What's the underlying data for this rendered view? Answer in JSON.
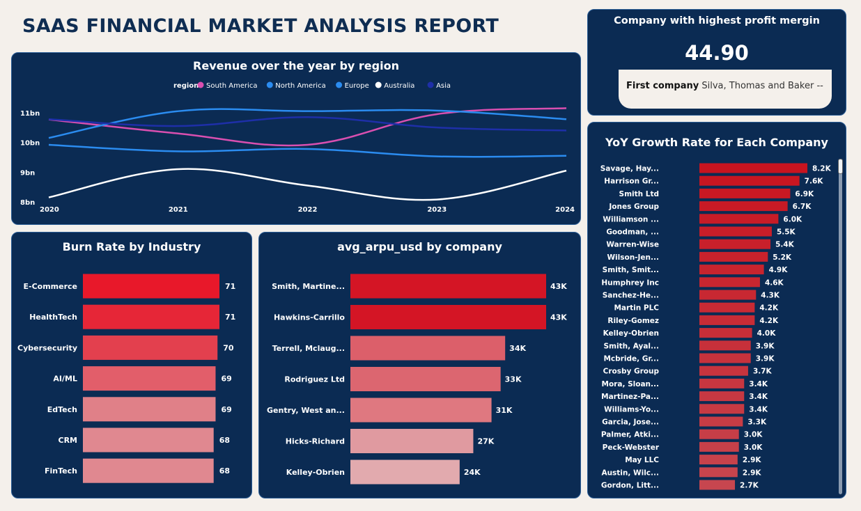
{
  "page_title": "SAAS FINANCIAL MARKET ANALYSIS REPORT",
  "kpi": {
    "title": "Company with highest profit mergin",
    "value": "44.90",
    "first_label": "First company",
    "first_value": "Silva, Thomas and Baker --"
  },
  "colors": {
    "background": "#f4f0eb",
    "card": "#0b2b53",
    "south_america": "#d94fb0",
    "north_america": "#2b8cf0",
    "europe": "#2b8cf0",
    "australia": "#ffffff",
    "asia": "#1e2fa8"
  },
  "chart_data": [
    {
      "type": "line",
      "title": "Revenue over the year by region",
      "legend_title": "region",
      "legend_position": "top",
      "x": [
        "2020",
        "2021",
        "2022",
        "2023",
        "2024"
      ],
      "y_ticks": [
        "8bn",
        "9bn",
        "10bn",
        "11bn"
      ],
      "ylim": [
        8,
        11.3
      ],
      "series": [
        {
          "name": "South America",
          "color": "#d94fb0",
          "values": [
            10.77,
            10.3,
            9.92,
            10.95,
            11.15
          ]
        },
        {
          "name": "North America",
          "color": "#2b8cf0",
          "values": [
            10.15,
            11.05,
            11.05,
            11.07,
            10.78
          ]
        },
        {
          "name": "Europe",
          "color": "#2b8cf0",
          "values": [
            9.92,
            9.7,
            9.78,
            9.53,
            9.55
          ]
        },
        {
          "name": "Australia",
          "color": "#ffffff",
          "values": [
            8.15,
            9.1,
            8.55,
            8.08,
            9.05
          ]
        },
        {
          "name": "Asia",
          "color": "#1e2fa8",
          "values": [
            10.78,
            10.55,
            10.85,
            10.5,
            10.4
          ]
        }
      ]
    },
    {
      "type": "bar",
      "orientation": "horizontal",
      "title": "Burn Rate by Industry",
      "categories": [
        "E-Commerce",
        "HealthTech",
        "Cybersecurity",
        "AI/ML",
        "EdTech",
        "CRM",
        "FinTech"
      ],
      "values": [
        71,
        71,
        70,
        69,
        69,
        68,
        68
      ],
      "labels": [
        "71",
        "71",
        "70",
        "69",
        "69",
        "68",
        "68"
      ],
      "colors": [
        "#e8182a",
        "#e62637",
        "#e3404e",
        "#e25e6a",
        "#e08088",
        "#e08890",
        "#e08890"
      ]
    },
    {
      "type": "bar",
      "orientation": "horizontal",
      "title": "avg_arpu_usd by company",
      "categories": [
        "Smith, Martine...",
        "Hawkins-Carrillo",
        "Terrell, Mclaug...",
        "Rodriguez Ltd",
        "Gentry, West an...",
        "Hicks-Richard",
        "Kelley-Obrien"
      ],
      "values": [
        43,
        43,
        34,
        33,
        31,
        27,
        24
      ],
      "labels": [
        "43K",
        "43K",
        "34K",
        "33K",
        "31K",
        "27K",
        "24K"
      ],
      "colors": [
        "#d41525",
        "#d41525",
        "#dc5f6a",
        "#dc6670",
        "#df7880",
        "#e09aa0",
        "#e2aaae"
      ]
    },
    {
      "type": "bar",
      "orientation": "horizontal",
      "title": "YoY Growth Rate for Each Company",
      "categories": [
        "Savage, Hay...",
        "Harrison Gr...",
        "Smith Ltd",
        "Jones Group",
        "Williamson ...",
        "Goodman, ...",
        "Warren-Wise",
        "Wilson-Jen...",
        "Smith, Smit...",
        "Humphrey Inc",
        "Sanchez-He...",
        "Martin PLC",
        "Riley-Gomez",
        "Kelley-Obrien",
        "Smith, Ayal...",
        "Mcbride, Gr...",
        "Crosby Group",
        "Mora, Sloan...",
        "Martinez-Pa...",
        "Williams-Yo...",
        "Garcia, Jose...",
        "Palmer, Atki...",
        "Peck-Webster",
        "May LLC",
        "Austin, Wilc...",
        "Gordon, Litt..."
      ],
      "values": [
        8.2,
        7.6,
        6.9,
        6.7,
        6.0,
        5.5,
        5.4,
        5.2,
        4.9,
        4.6,
        4.3,
        4.2,
        4.2,
        4.0,
        3.9,
        3.9,
        3.7,
        3.4,
        3.4,
        3.4,
        3.3,
        3.0,
        3.0,
        2.9,
        2.9,
        2.7
      ],
      "labels": [
        "8.2K",
        "7.6K",
        "6.9K",
        "6.7K",
        "6.0K",
        "5.5K",
        "5.4K",
        "5.2K",
        "4.9K",
        "4.6K",
        "4.3K",
        "4.2K",
        "4.2K",
        "4.0K",
        "3.9K",
        "3.9K",
        "3.7K",
        "3.4K",
        "3.4K",
        "3.4K",
        "3.3K",
        "3.0K",
        "3.0K",
        "2.9K",
        "2.9K",
        "2.7K"
      ],
      "color_range": [
        "#c8141f",
        "#c7464f"
      ]
    }
  ]
}
